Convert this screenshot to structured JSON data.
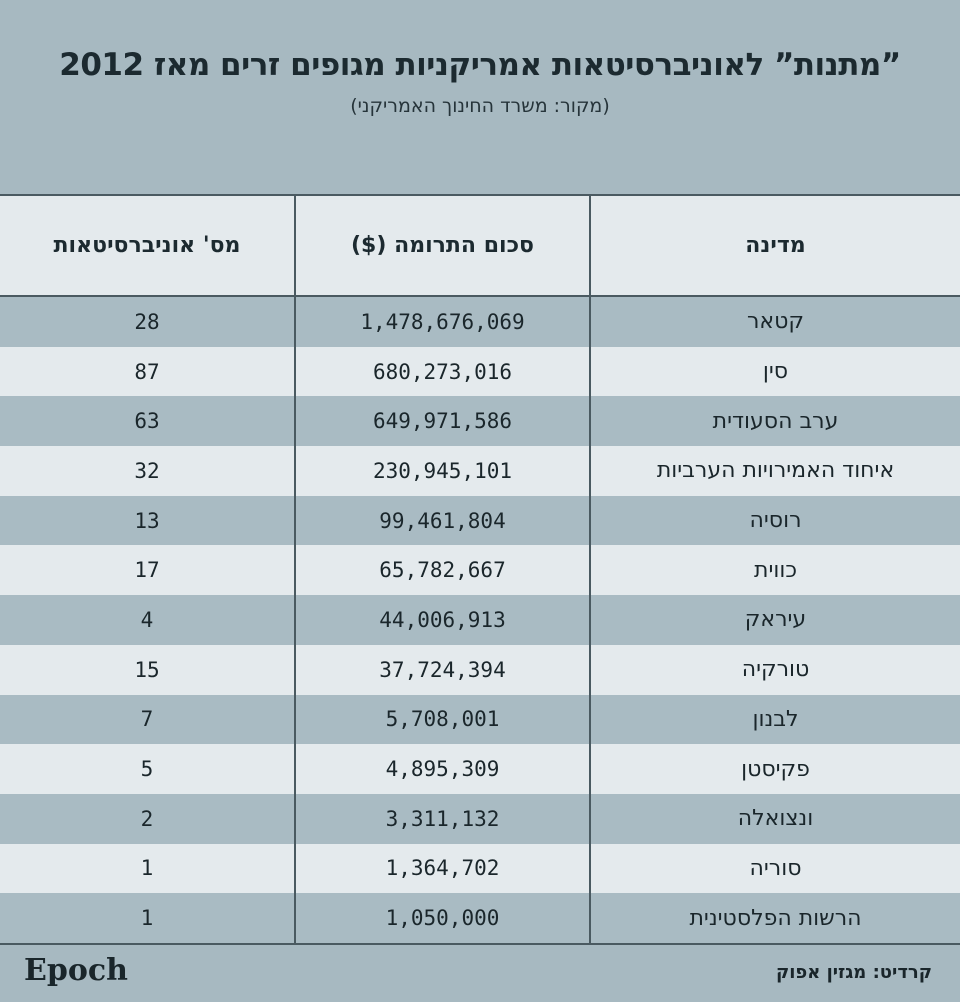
{
  "chart_data": {
    "type": "table",
    "title": "”מתנות” לאוניברסיטאות אמריקניות מגופים זרים מאז 2012",
    "subtitle": "(מקור: משרד החינוך האמריקני)",
    "columns": [
      "מדינה",
      "סכום התרומה ($)",
      "מס' אוניברסיטאות"
    ],
    "rows": [
      {
        "country": "קטאר",
        "amount": "1,478,676,069",
        "universities": "28"
      },
      {
        "country": "סין",
        "amount": "680,273,016",
        "universities": "87"
      },
      {
        "country": "ערב הסעודית",
        "amount": "649,971,586",
        "universities": "63"
      },
      {
        "country": "איחוד האמירויות הערביות",
        "amount": "230,945,101",
        "universities": "32"
      },
      {
        "country": "רוסיה",
        "amount": "99,461,804",
        "universities": "13"
      },
      {
        "country": "כווית",
        "amount": "65,782,667",
        "universities": "17"
      },
      {
        "country": "עיראק",
        "amount": "44,006,913",
        "universities": "4"
      },
      {
        "country": "טורקיה",
        "amount": "37,724,394",
        "universities": "15"
      },
      {
        "country": "לבנון",
        "amount": "5,708,001",
        "universities": "7"
      },
      {
        "country": "פקיסטן",
        "amount": "4,895,309",
        "universities": "5"
      },
      {
        "country": "ונצואלה",
        "amount": "3,311,132",
        "universities": "2"
      },
      {
        "country": "סוריה",
        "amount": "1,364,702",
        "universities": "1"
      },
      {
        "country": "הרשות הפלסטינית",
        "amount": "1,050,000",
        "universities": "1"
      }
    ]
  },
  "footer": {
    "logo": "Epoch",
    "credit": "קרדיט: מגזין אפוק"
  },
  "colors": {
    "background": "#a7b9c1",
    "light_row": "#e4eaed",
    "dark_row": "#a9bbc3",
    "text": "#1c2a30"
  }
}
